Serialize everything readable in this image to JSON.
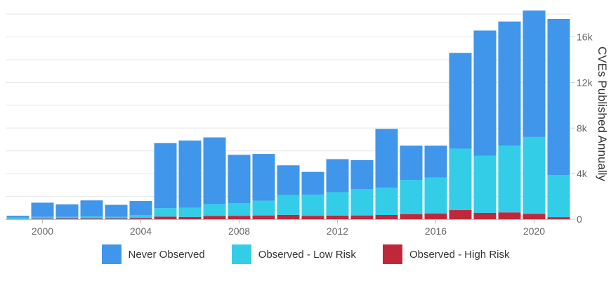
{
  "chart_data": {
    "type": "bar",
    "stacked": true,
    "ylabel": "CVEs Published Annually",
    "ylim": [
      0,
      18500
    ],
    "y_ticks": [
      0,
      4000,
      8000,
      12000,
      16000
    ],
    "y_tick_labels": [
      "0",
      "4k",
      "8k",
      "12k",
      "16k"
    ],
    "x_tick_labels": [
      "2000",
      "2004",
      "2008",
      "2012",
      "2016",
      "2020"
    ],
    "categories": [
      "1999",
      "2000",
      "2001",
      "2002",
      "2003",
      "2004",
      "2005",
      "2006",
      "2007",
      "2008",
      "2009",
      "2010",
      "2011",
      "2012",
      "2013",
      "2014",
      "2015",
      "2016",
      "2017",
      "2018",
      "2019",
      "2020",
      "2021"
    ],
    "series": [
      {
        "name": "Observed - High Risk",
        "color": "#c0283a",
        "values": [
          20,
          50,
          60,
          70,
          60,
          100,
          230,
          200,
          280,
          300,
          330,
          380,
          300,
          320,
          330,
          370,
          450,
          500,
          800,
          560,
          600,
          470,
          180
        ]
      },
      {
        "name": "Observed - Low Risk",
        "color": "#33cde8",
        "values": [
          130,
          150,
          140,
          180,
          150,
          250,
          750,
          800,
          1050,
          1100,
          1300,
          1750,
          1850,
          2050,
          2300,
          2400,
          3000,
          3150,
          5400,
          5000,
          5850,
          6750,
          3700
        ]
      },
      {
        "name": "Never Observed",
        "color": "#3f96ea",
        "values": [
          150,
          1250,
          1100,
          1400,
          1050,
          1250,
          5700,
          5900,
          5850,
          4250,
          4100,
          2600,
          2000,
          2900,
          2550,
          5150,
          3000,
          2800,
          8400,
          11000,
          10900,
          11100,
          13700
        ]
      }
    ],
    "legend": [
      "Never Observed",
      "Observed - Low Risk",
      "Observed - High Risk"
    ],
    "legend_colors": [
      "#3f96ea",
      "#33cde8",
      "#c0283a"
    ],
    "grid": true,
    "legend_position": "bottom"
  }
}
